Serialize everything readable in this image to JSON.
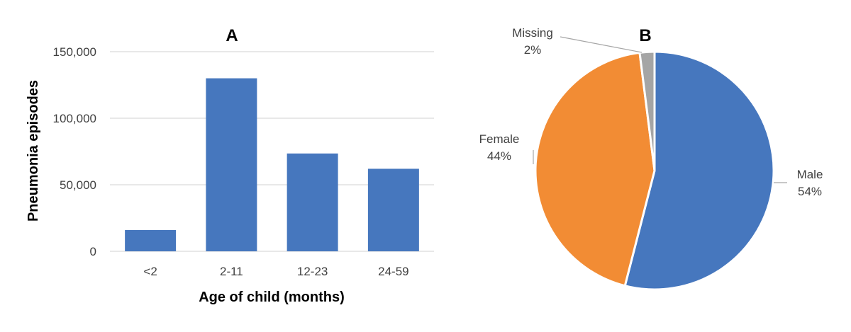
{
  "chart_data": [
    {
      "type": "bar",
      "title": "A",
      "xlabel": "Age of child (months)",
      "ylabel": "Pneumonia episodes",
      "categories": [
        "<2",
        "2-11",
        "12-23",
        "24-59"
      ],
      "values": [
        16000,
        130000,
        73500,
        62000
      ],
      "ylim": [
        0,
        150000
      ],
      "yticks": [
        0,
        50000,
        100000,
        150000
      ],
      "ytick_labels": [
        "0",
        "50,000",
        "100,000",
        "150,000"
      ],
      "grid": true,
      "color": "#4677BE"
    },
    {
      "type": "pie",
      "title": "B",
      "slices": [
        {
          "label": "Male",
          "pct_label": "54%",
          "value": 54,
          "color": "#4677BE"
        },
        {
          "label": "Female",
          "pct_label": "44%",
          "value": 44,
          "color": "#F28C34"
        },
        {
          "label": "Missing",
          "pct_label": "2%",
          "value": 2,
          "color": "#A5A5A5"
        }
      ]
    }
  ]
}
